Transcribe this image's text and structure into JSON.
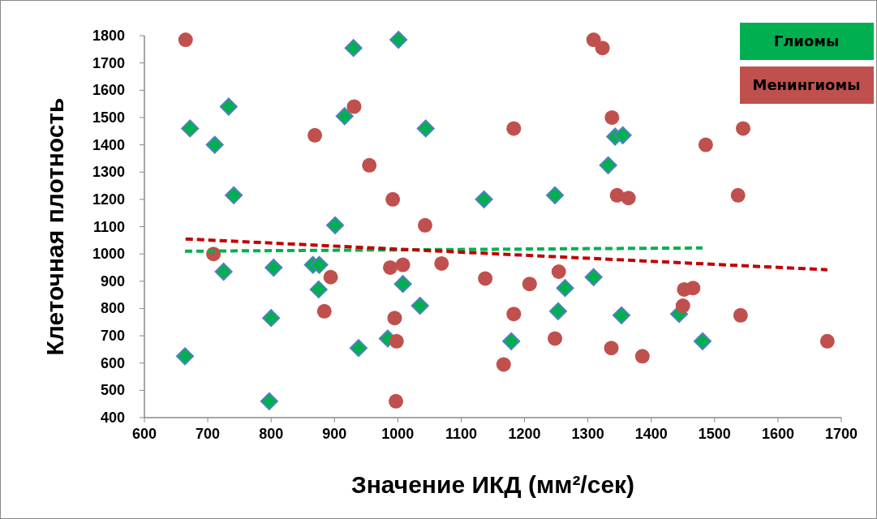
{
  "chart_data": {
    "type": "scatter",
    "xlabel": "Значение ИКД (мм²/сек)",
    "ylabel": "Клеточная плотность",
    "xlim": [
      600,
      1700
    ],
    "xticks": [
      600,
      700,
      800,
      900,
      1000,
      1100,
      1200,
      1300,
      1400,
      1500,
      1600,
      1700
    ],
    "ylim": [
      400,
      1800
    ],
    "yticks": [
      400,
      500,
      600,
      700,
      800,
      900,
      1000,
      1100,
      1200,
      1300,
      1400,
      1500,
      1600,
      1700,
      1800
    ],
    "grid": false,
    "legend": "top right",
    "series": [
      {
        "name": "Глиомы",
        "color": "#00b050",
        "marker": "diamond",
        "x": [
          664,
          672,
          711,
          733,
          741,
          725,
          804,
          800,
          797,
          866,
          876,
          875,
          916,
          930,
          901,
          938,
          1001,
          1044,
          1008,
          984,
          1035,
          1136,
          1179,
          1248,
          1253,
          1264,
          1309,
          1332,
          1343,
          1355,
          1353,
          1444,
          1481
        ],
        "values": [
          625,
          1460,
          1400,
          1540,
          1215,
          935,
          950,
          765,
          460,
          960,
          960,
          870,
          1505,
          1755,
          1105,
          655,
          1785,
          1460,
          890,
          690,
          810,
          1200,
          680,
          1215,
          790,
          875,
          915,
          1325,
          1430,
          1435,
          775,
          780,
          680
        ]
      },
      {
        "name": "Менингиомы",
        "color": "#c0504d",
        "marker": "circle",
        "x": [
          665,
          709,
          869,
          894,
          884,
          931,
          955,
          992,
          988,
          1008,
          995,
          998,
          997,
          1043,
          1069,
          1138,
          1167,
          1183,
          1183,
          1208,
          1248,
          1254,
          1309,
          1323,
          1338,
          1346,
          1364,
          1337,
          1386,
          1450,
          1452,
          1466,
          1486,
          1537,
          1541,
          1545,
          1678
        ],
        "values": [
          1785,
          1000,
          1435,
          915,
          790,
          1540,
          1325,
          1200,
          950,
          960,
          765,
          680,
          460,
          1105,
          965,
          910,
          595,
          780,
          1460,
          890,
          690,
          935,
          1785,
          1755,
          1500,
          1215,
          1205,
          655,
          625,
          810,
          870,
          875,
          1400,
          1215,
          775,
          1460,
          680
        ]
      },
      {
        "type": "line",
        "color": "#00b050",
        "line_style": "dashed",
        "x": [
          664,
          1481
        ],
        "values": [
          1010,
          1022
        ]
      },
      {
        "type": "line",
        "color": "#c00000",
        "line_style": "dashed",
        "x": [
          665,
          1678
        ],
        "values": [
          1055,
          942
        ]
      }
    ]
  }
}
